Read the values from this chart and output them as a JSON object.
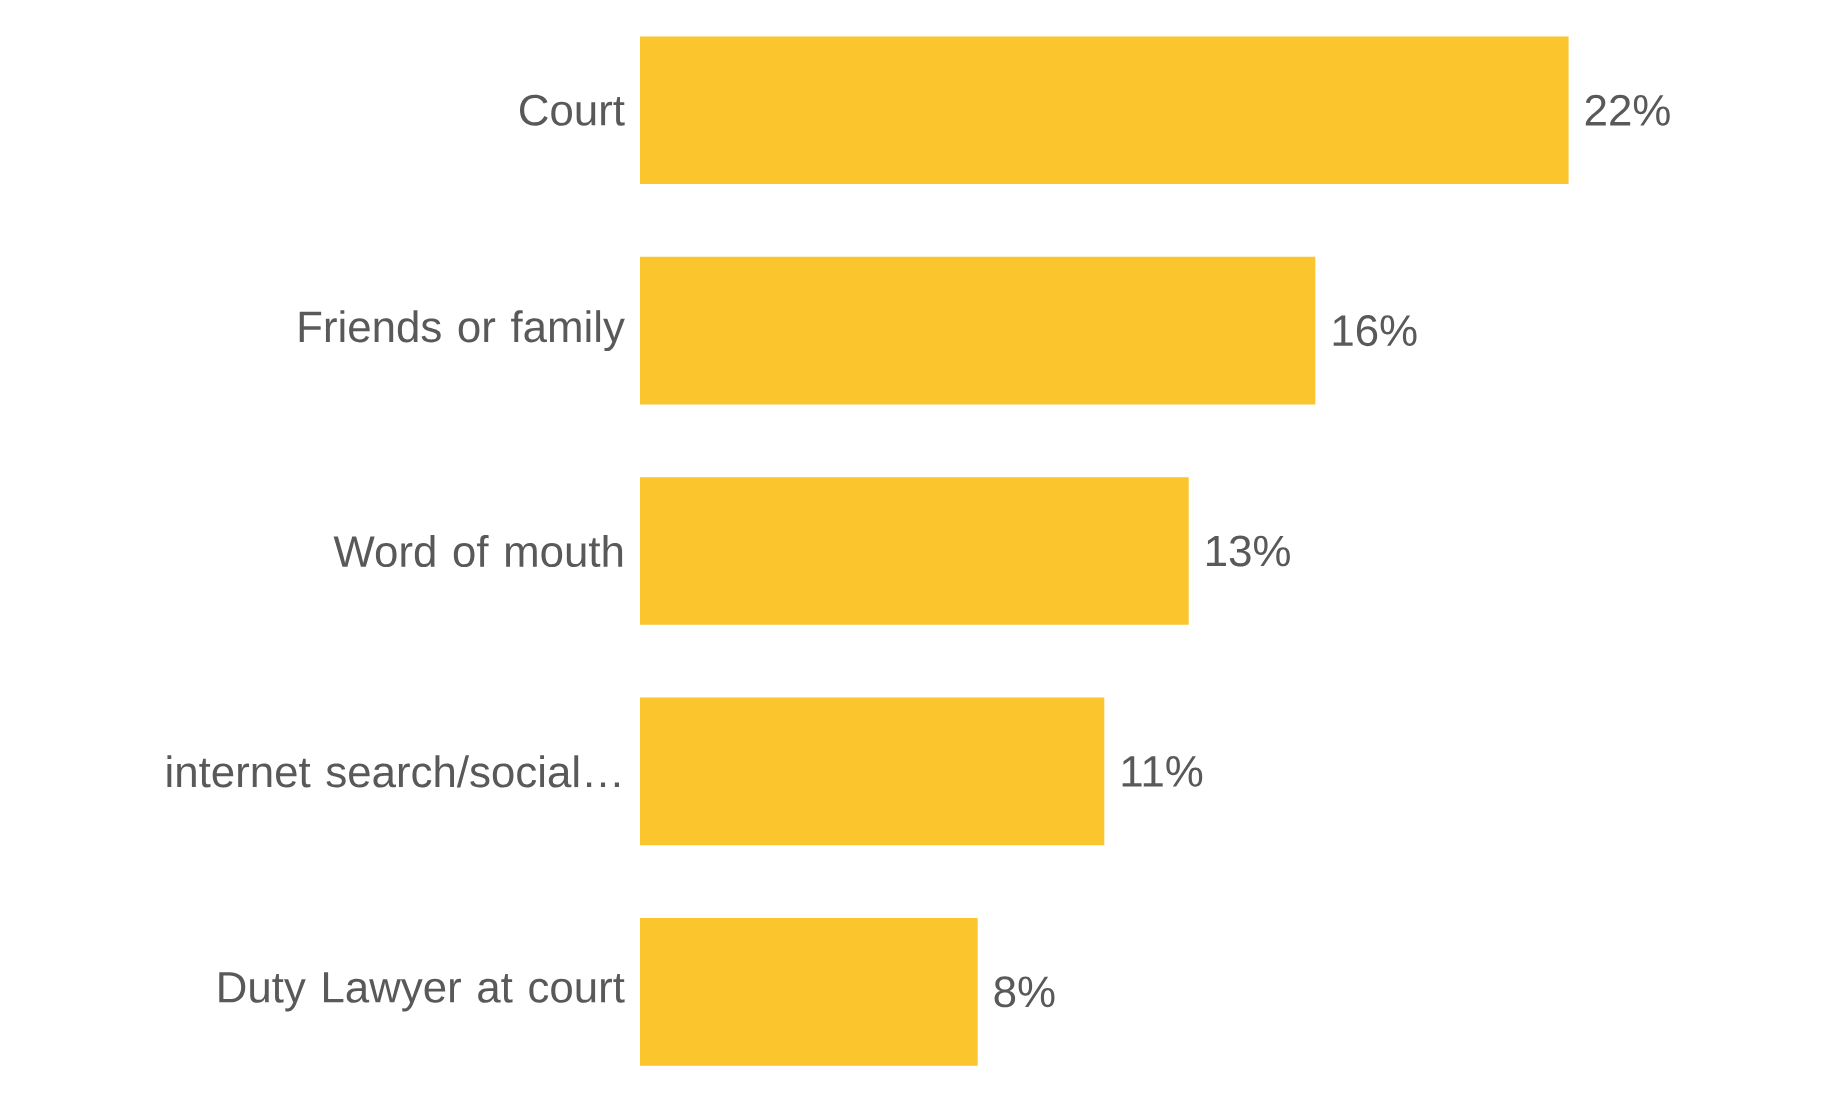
{
  "chart_data": {
    "type": "bar",
    "orientation": "horizontal",
    "categories": [
      "Court",
      "Friends or family",
      "Word of mouth",
      "internet search/social…",
      "Duty Lawyer at court"
    ],
    "values": [
      22,
      16,
      13,
      11,
      8
    ],
    "value_labels": [
      "22%",
      "16%",
      "13%",
      "11%",
      "8%"
    ],
    "color": "#fbc52e"
  }
}
